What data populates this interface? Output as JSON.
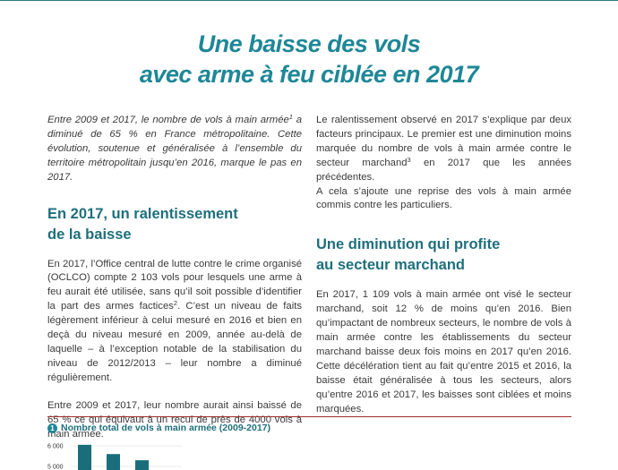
{
  "title": {
    "line1": "Une baisse des vols",
    "line2": "avec arme à feu ciblée en 2017"
  },
  "left": {
    "intro_a": "Entre 2009 et 2017, le nombre de vols à main armée",
    "intro_sup": "1",
    "intro_b": " a diminué de 65 % en France métropolitaine. Cette évolution, soutenue et généralisée à l’ensemble du territoire métropolitain jusqu’en 2016, marque le pas en 2017.",
    "heading_line1": "En 2017, un ralentissement",
    "heading_line2": "de la baisse",
    "p1_a": "En 2017, l’Office central de lutte contre le crime organisé (OCLCO) compte 2 103 vols pour lesquels une arme à feu aurait été utilisée, sans qu’il soit possible d’identifier la part des armes factices",
    "p1_sup": "2",
    "p1_b": ". C’est un niveau de faits légèrement inférieur à celui mesuré en 2016 et bien en deçà du niveau mesuré en 2009, année au-delà de laquelle – à l’exception notable de la stabilisation du niveau de 2012/2013 – leur nombre a diminué régulièrement.",
    "p2": "Entre 2009 et 2017, leur nombre aurait ainsi baissé de 65 % ce qui équivaut à un recul de près de 4000 vols à main armée."
  },
  "right": {
    "p1_a": "Le ralentissement observé en 2017 s’explique par deux facteurs principaux. Le premier est une diminution moins marquée du nombre de vols à main armée contre le secteur marchand",
    "p1_sup": "3",
    "p1_b": " en 2017 que les années précédentes.",
    "p1_c": "A cela s’ajoute une reprise des vols à main armée commis contre les particuliers.",
    "heading_line1": "Une diminution qui profite",
    "heading_line2": "au secteur marchand",
    "p2": "En 2017, 1 109 vols à main armée ont visé le secteur marchand, soit 12 % de moins qu’en 2016. Bien qu’impactant de nombreux secteurs, le nombre de vols à main armée contre les établissements du secteur marchand baisse deux fois moins en 2017 qu’en 2016. Cette décélération tient au fait qu’entre 2015 et 2016, la baisse était généralisée à tous les secteurs, alors qu’entre 2016 et 2017, les baisses sont ciblées et moins marquées."
  },
  "chart_header": {
    "number": "1",
    "title": "Nombre total de vols à main armée (2009-2017)"
  },
  "chart_data": {
    "type": "bar",
    "title": "Nombre total de vols à main armée (2009-2017)",
    "ytick_labels": [
      "6 000",
      "5 000"
    ],
    "yticks": [
      6000,
      5000
    ],
    "ylim": [
      0,
      6400
    ],
    "values": [
      6050,
      5600,
      5300
    ],
    "color": "#1a6e7c"
  },
  "colors": {
    "title": "#1f8797",
    "heading": "#1f6f7d",
    "rule": "#9b2d2d",
    "bar": "#1a6e7c"
  }
}
